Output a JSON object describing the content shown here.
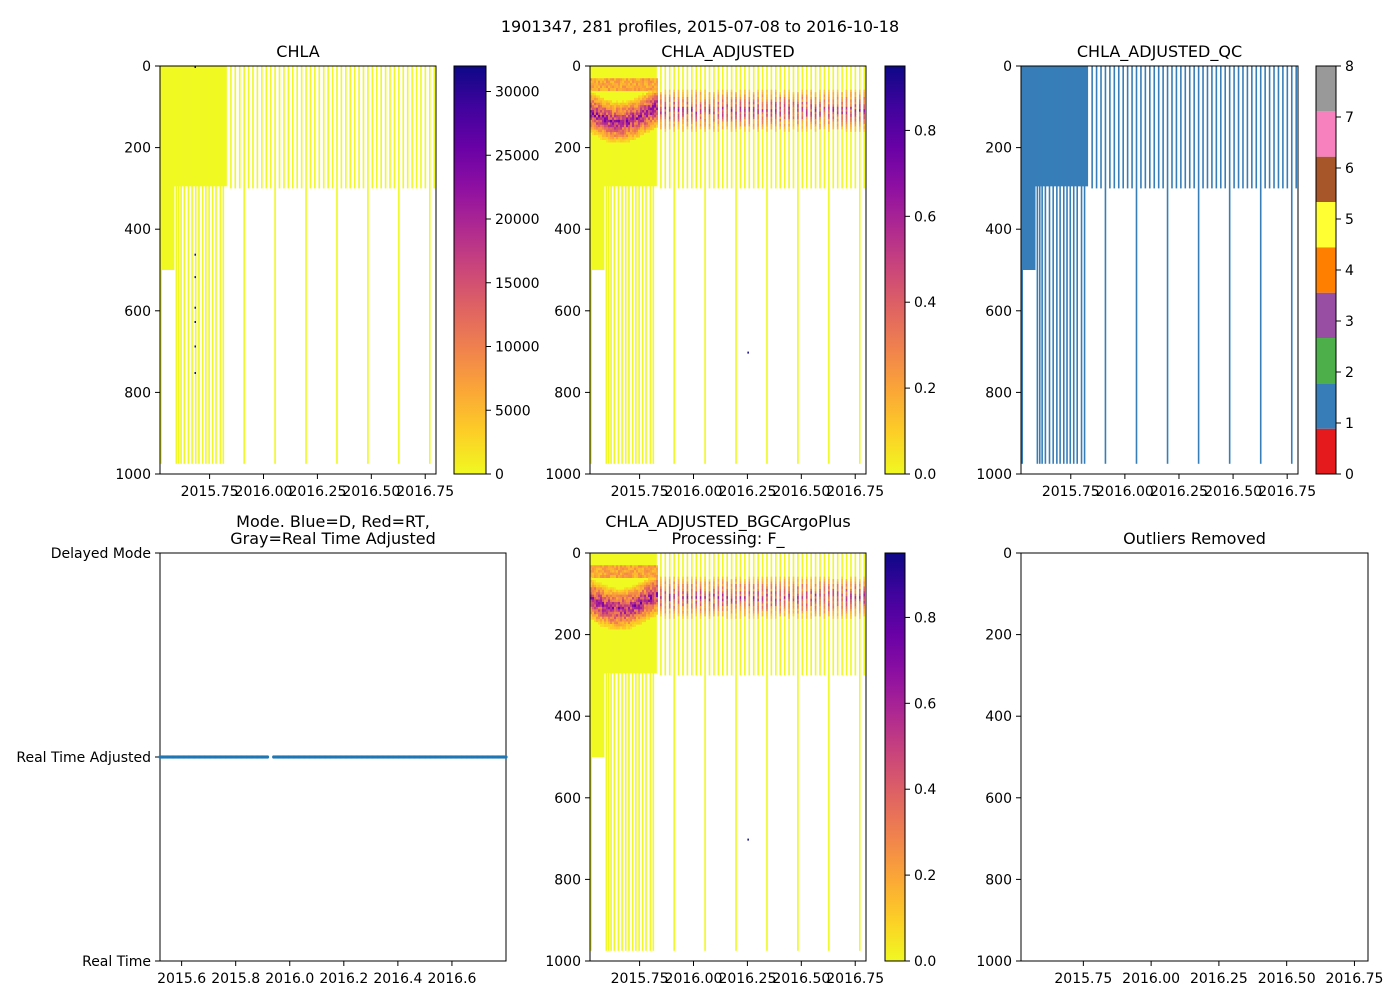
{
  "figure_title": "1901347, 281 profiles, 2015-07-08 to 2016-10-18",
  "chart_data": [
    {
      "id": "chla",
      "type": "heatmap",
      "title": "CHLA",
      "x_range": [
        2015.52,
        2016.8
      ],
      "y_range": [
        1000,
        0
      ],
      "x_ticks": [
        2015.75,
        2016.0,
        2016.25,
        2016.5,
        2016.75
      ],
      "x_tick_labels": [
        "2015.75",
        "2016.00",
        "2016.25",
        "2016.50",
        "2016.75"
      ],
      "y_ticks": [
        0,
        200,
        400,
        600,
        800,
        1000
      ],
      "y_tick_labels": [
        "0",
        "200",
        "400",
        "600",
        "800",
        "1000"
      ],
      "colormap": "plasma_r",
      "colorbar": {
        "min": 0,
        "max": 32000,
        "ticks": [
          0,
          5000,
          10000,
          15000,
          20000,
          25000,
          30000
        ],
        "tick_labels": [
          "0",
          "5000",
          "10000",
          "15000",
          "20000",
          "25000",
          "30000"
        ]
      },
      "fill_value": 0,
      "dense_fill": {
        "x_start": 2015.52,
        "x_end": 2015.83,
        "depth": 295
      },
      "deep_profiles_until": 2015.52,
      "profile_max_depth": 975
    },
    {
      "id": "chla_adjusted",
      "type": "heatmap",
      "title": "CHLA_ADJUSTED",
      "x_range": [
        2015.52,
        2016.8
      ],
      "y_range": [
        1000,
        0
      ],
      "x_ticks": [
        2015.75,
        2016.0,
        2016.25,
        2016.5,
        2016.75
      ],
      "x_tick_labels": [
        "2015.75",
        "2016.00",
        "2016.25",
        "2016.50",
        "2016.75"
      ],
      "y_ticks": [
        0,
        200,
        400,
        600,
        800,
        1000
      ],
      "y_tick_labels": [
        "0",
        "200",
        "400",
        "600",
        "800",
        "1000"
      ],
      "colormap": "plasma_r",
      "colorbar": {
        "min": 0,
        "max": 0.95,
        "ticks": [
          0.0,
          0.2,
          0.4,
          0.6,
          0.8
        ],
        "tick_labels": [
          "0.0",
          "0.2",
          "0.4",
          "0.6",
          "0.8"
        ]
      },
      "dcm_depth_range": [
        60,
        160
      ],
      "dcm_peak_value": 0.65
    },
    {
      "id": "chla_adjusted_qc",
      "type": "heatmap",
      "title": "CHLA_ADJUSTED_QC",
      "x_range": [
        2015.52,
        2016.8
      ],
      "y_range": [
        1000,
        0
      ],
      "x_ticks": [
        2015.75,
        2016.0,
        2016.25,
        2016.5,
        2016.75
      ],
      "x_tick_labels": [
        "2015.75",
        "2016.00",
        "2016.25",
        "2016.50",
        "2016.75"
      ],
      "y_ticks": [
        0,
        200,
        400,
        600,
        800,
        1000
      ],
      "y_tick_labels": [
        "0",
        "200",
        "400",
        "600",
        "800",
        "1000"
      ],
      "qc_value_shown": 1,
      "colorbar": {
        "min": 0,
        "max": 8,
        "ticks": [
          0,
          1,
          2,
          3,
          4,
          5,
          6,
          7,
          8
        ],
        "tick_labels": [
          "0",
          "1",
          "2",
          "3",
          "4",
          "5",
          "6",
          "7",
          "8"
        ],
        "segment_colors": [
          "#e41a1c",
          "#377eb8",
          "#4daf4a",
          "#984ea3",
          "#ff7f00",
          "#ffff33",
          "#a65628",
          "#f781bf",
          "#999999"
        ]
      }
    },
    {
      "id": "mode",
      "type": "scatter",
      "title_line1": "Mode. Blue=D, Red=RT,",
      "title_line2": "Gray=Real Time Adjusted",
      "x_range": [
        2015.52,
        2016.8
      ],
      "x_ticks": [
        2015.6,
        2015.8,
        2016.0,
        2016.2,
        2016.4,
        2016.6
      ],
      "x_tick_labels": [
        "2015.6",
        "2015.8",
        "2016.0",
        "2016.2",
        "2016.4",
        "2016.6"
      ],
      "y_categories": [
        "Real Time",
        "Real Time Adjusted",
        "Delayed Mode"
      ],
      "y_values": [
        0,
        1,
        2
      ],
      "series": [
        {
          "name": "profiles",
          "category": "Real Time Adjusted",
          "color": "#1f77b4",
          "count": 281,
          "x_start": 2015.52,
          "x_end": 2016.8
        }
      ]
    },
    {
      "id": "chla_bgc",
      "type": "heatmap",
      "title_line1": "CHLA_ADJUSTED_BGCArgoPlus",
      "title_line2": "Processing: F_",
      "x_range": [
        2015.52,
        2016.8
      ],
      "y_range": [
        1000,
        0
      ],
      "x_ticks": [
        2015.75,
        2016.0,
        2016.25,
        2016.5,
        2016.75
      ],
      "x_tick_labels": [
        "2015.75",
        "2016.00",
        "2016.25",
        "2016.50",
        "2016.75"
      ],
      "y_ticks": [
        0,
        200,
        400,
        600,
        800,
        1000
      ],
      "y_tick_labels": [
        "0",
        "200",
        "400",
        "600",
        "800",
        "1000"
      ],
      "colormap": "plasma_r",
      "colorbar": {
        "min": 0,
        "max": 0.95,
        "ticks": [
          0.0,
          0.2,
          0.4,
          0.6,
          0.8
        ],
        "tick_labels": [
          "0.0",
          "0.2",
          "0.4",
          "0.6",
          "0.8"
        ]
      }
    },
    {
      "id": "outliers",
      "type": "scatter",
      "title": "Outliers Removed",
      "x_range": [
        2015.52,
        2016.8
      ],
      "y_range": [
        1000,
        0
      ],
      "x_ticks": [
        2015.75,
        2016.0,
        2016.25,
        2016.5,
        2016.75
      ],
      "x_tick_labels": [
        "2015.75",
        "2016.00",
        "2016.25",
        "2016.50",
        "2016.75"
      ],
      "y_ticks": [
        0,
        200,
        400,
        600,
        800,
        1000
      ],
      "y_tick_labels": [
        "0",
        "200",
        "400",
        "600",
        "800",
        "1000"
      ],
      "points": []
    }
  ],
  "profiles": {
    "dense_until": 2015.83,
    "dense_depth": 295,
    "dense_deep_region": {
      "x_end": 2015.587,
      "depth": 500
    },
    "early_profiles": [
      {
        "x": 2015.592,
        "depth": 975
      },
      {
        "x": 2015.603,
        "depth": 975
      },
      {
        "x": 2015.614,
        "depth": 975
      },
      {
        "x": 2015.629,
        "depth": 975
      },
      {
        "x": 2015.648,
        "depth": 975
      },
      {
        "x": 2015.665,
        "depth": 975
      },
      {
        "x": 2015.682,
        "depth": 975
      },
      {
        "x": 2015.697,
        "depth": 975
      },
      {
        "x": 2015.714,
        "depth": 975
      },
      {
        "x": 2015.729,
        "depth": 975
      },
      {
        "x": 2015.744,
        "depth": 975
      },
      {
        "x": 2015.76,
        "depth": 975
      },
      {
        "x": 2015.776,
        "depth": 975
      },
      {
        "x": 2015.796,
        "depth": 975
      },
      {
        "x": 2015.81,
        "depth": 975
      }
    ],
    "late_spacing": 0.0205,
    "late_start": 2015.845,
    "late_end": 2016.79,
    "late_depth": 300,
    "occasional_deep_every": 7
  }
}
